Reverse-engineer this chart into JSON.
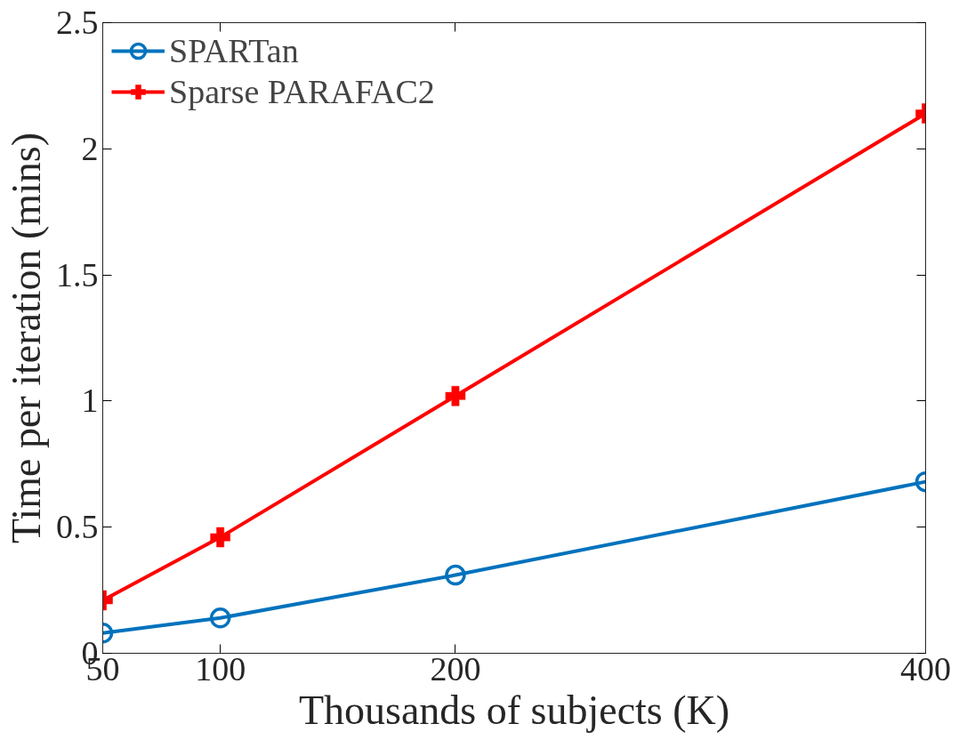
{
  "chart_data": {
    "type": "line",
    "xlabel": "Thousands of subjects (K)",
    "ylabel": "Time per iteration (mins)",
    "x": [
      50,
      100,
      200,
      400
    ],
    "series": [
      {
        "name": "SPARTan",
        "color": "#0072bd",
        "marker": "circle",
        "values": [
          0.08,
          0.14,
          0.31,
          0.68
        ]
      },
      {
        "name": "Sparse PARAFAC2",
        "color": "#ff0000",
        "marker": "cross",
        "values": [
          0.21,
          0.46,
          1.02,
          2.14
        ]
      }
    ],
    "xlim": [
      50,
      400
    ],
    "ylim": [
      0,
      2.5
    ],
    "xticks": [
      50,
      100,
      200,
      400
    ],
    "yticks": [
      0,
      0.5,
      1,
      1.5,
      2,
      2.5
    ],
    "grid": false,
    "legend": "top left",
    "line_style": "solid"
  }
}
